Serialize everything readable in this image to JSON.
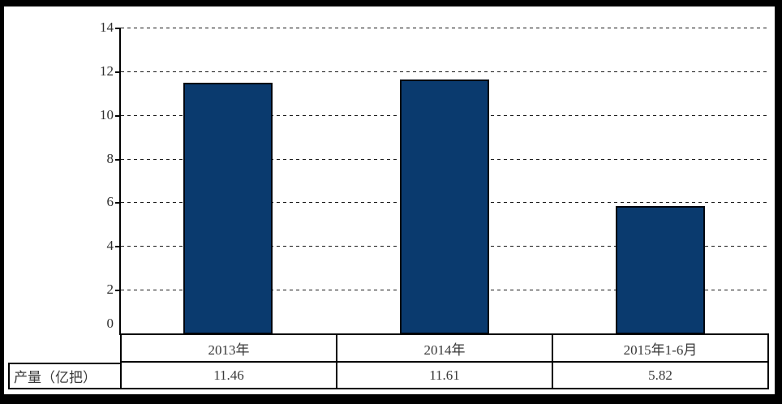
{
  "chart_data": {
    "type": "bar",
    "categories": [
      "2013年",
      "2014年",
      "2015年1-6月"
    ],
    "values": [
      11.46,
      11.61,
      5.82
    ],
    "series_label": "产量（亿把）",
    "title": "",
    "xlabel": "",
    "ylabel": "",
    "ylim": [
      0,
      14
    ],
    "yticks": [
      0,
      2,
      4,
      6,
      8,
      10,
      12,
      14
    ],
    "grid": "horizontal-dashed",
    "legend_position": "none",
    "bar_color": "#0a3a6e",
    "bar_border_color": "#00060f"
  },
  "table": {
    "row_label": "产量（亿把）",
    "categories": [
      "2013年",
      "2014年",
      "2015年1-6月"
    ],
    "values": [
      "11.46",
      "11.61",
      "5.82"
    ]
  }
}
